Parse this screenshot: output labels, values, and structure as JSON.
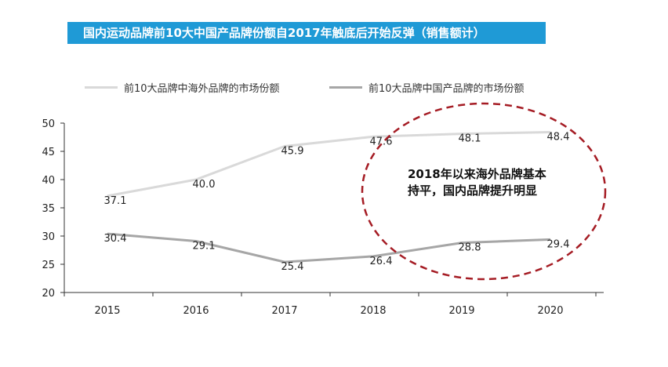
{
  "title": "国内运动品牌前10大中国产品牌份额自2017年触底后开始反弹（销售额计）",
  "annotation": {
    "line1": "2018年以来海外品牌基本",
    "line2": "持平，国内品牌提升明显"
  },
  "colors": {
    "title_bg": "#1f9ad6",
    "series_foreign": "#d9d9d9",
    "series_domestic": "#a6a6a6",
    "ellipse": "#a51c24"
  },
  "chart_data": {
    "type": "line",
    "x": [
      "2015",
      "2016",
      "2017",
      "2018",
      "2019",
      "2020"
    ],
    "ylim": [
      20,
      50
    ],
    "yticks": [
      20,
      25,
      30,
      35,
      40,
      45,
      50
    ],
    "grid": false,
    "legend_position": "top",
    "series": [
      {
        "name": "前10大品牌中海外品牌的市场份额",
        "values": [
          37.1,
          40.0,
          45.9,
          47.6,
          48.1,
          48.4
        ],
        "labels": [
          "37.1",
          "40.0",
          "45.9",
          "47.6",
          "48.1",
          "48.4"
        ]
      },
      {
        "name": "前10大品牌中国产品牌的市场份额",
        "values": [
          30.4,
          29.1,
          25.4,
          26.4,
          28.8,
          29.4
        ],
        "labels": [
          "30.4",
          "29.1",
          "25.4",
          "26.4",
          "28.8",
          "29.4"
        ]
      }
    ]
  }
}
